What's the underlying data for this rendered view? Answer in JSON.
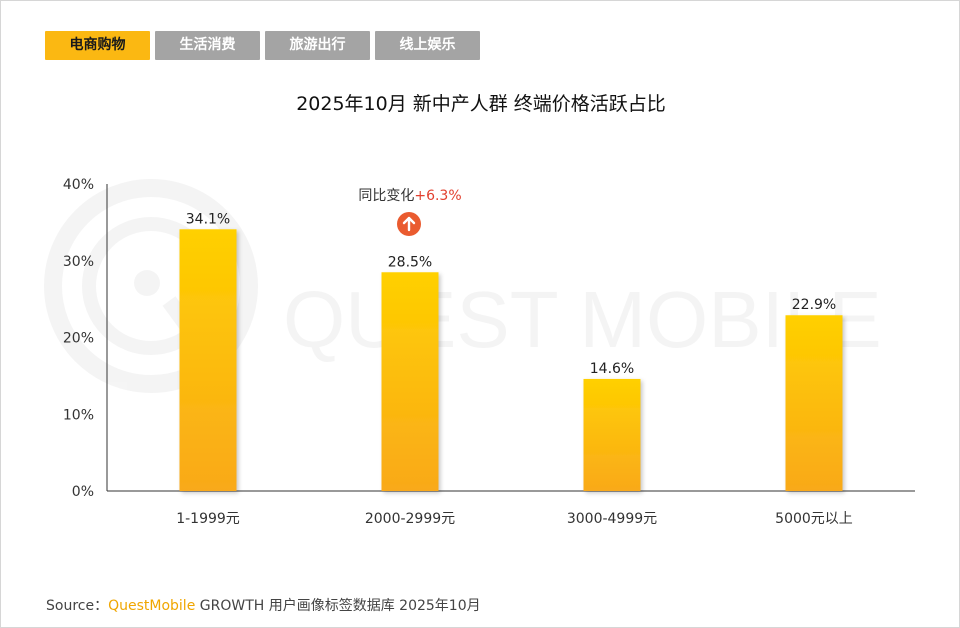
{
  "tabs": [
    {
      "label": "电商购物",
      "active": true
    },
    {
      "label": "生活消费",
      "active": false
    },
    {
      "label": "旅游出行",
      "active": false
    },
    {
      "label": "线上娱乐",
      "active": false
    }
  ],
  "watermark": "QUEST MOBILE",
  "annotation": {
    "prefix": "同比变化",
    "change": "+6.3%",
    "change_color": "#e2402f",
    "icon": "up-arrow-icon"
  },
  "colors": {
    "bar_top": "#ffd000",
    "bar_bottom": "#f9a91a",
    "tab_active": "#fbb812",
    "tab_inactive": "#a4a4a4",
    "brand": "#f0a600"
  },
  "source": {
    "label": "Source：",
    "brand": "QuestMobile",
    "rest": "GROWTH 用户画像标签数据库 2025年10月"
  },
  "chart_data": {
    "type": "bar",
    "title": "2025年10月 新中产人群 终端价格活跃占比",
    "categories": [
      "1-1999元",
      "2000-2999元",
      "3000-4999元",
      "5000元以上"
    ],
    "values": [
      34.1,
      28.5,
      14.6,
      22.9
    ],
    "data_labels": [
      "34.1%",
      "28.5%",
      "14.6%",
      "22.9%"
    ],
    "yticks": [
      "0%",
      "10%",
      "20%",
      "30%",
      "40%"
    ],
    "ylim": [
      0,
      40
    ],
    "grid": false,
    "xlabel": "",
    "ylabel": ""
  }
}
